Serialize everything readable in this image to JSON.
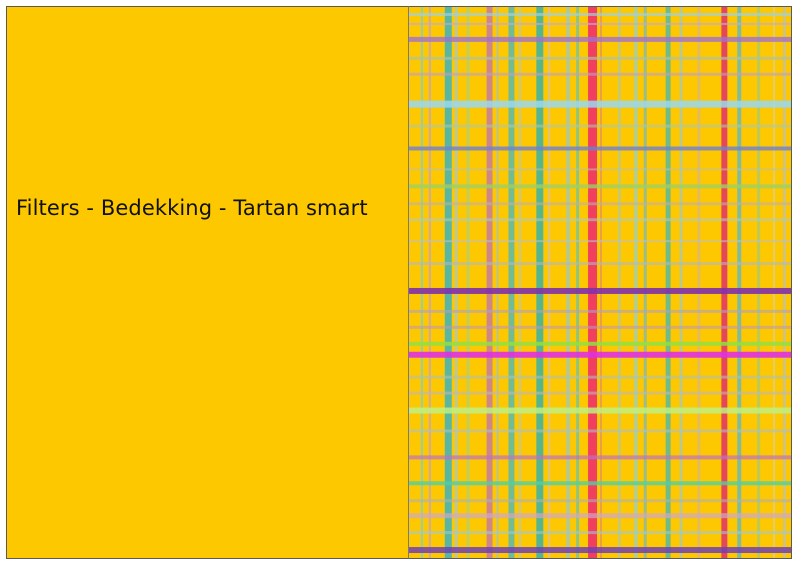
{
  "caption": {
    "text": "Filters - Bedekking - Tartan smart"
  },
  "colors": {
    "background": "#fdc800",
    "border": "#5a5a5a",
    "text": "#111111"
  },
  "preview": {
    "description_icon": "tartan-pattern-preview"
  }
}
